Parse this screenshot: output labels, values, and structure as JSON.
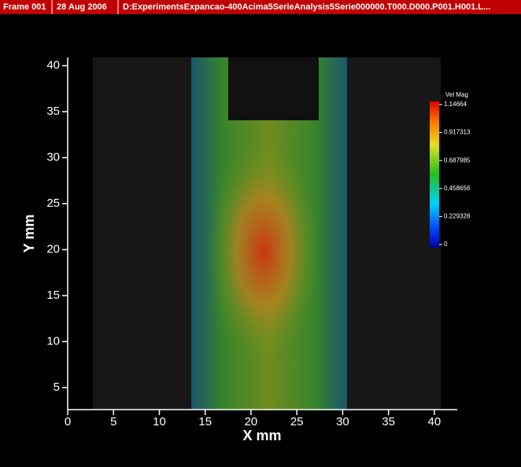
{
  "header": {
    "frame": "Frame 001",
    "date": "28 Aug 2006",
    "file": "D:ExperimentsExpancao-400Acima5SerieAnalysis5Serie000000.T000.D000.P001.H001.L..."
  },
  "chart_data": {
    "type": "quiver",
    "xlabel": "X mm",
    "ylabel": "Y mm",
    "xlim": [
      0,
      42.5
    ],
    "ylim": [
      2.6,
      40.9
    ],
    "xticks": [
      0,
      5,
      10,
      15,
      20,
      25,
      30,
      35,
      40
    ],
    "yticks": [
      5,
      10,
      15,
      20,
      25,
      30,
      35,
      40
    ],
    "colorbar": {
      "title": "Vel Mag",
      "clim": [
        0,
        1.14664
      ],
      "ticks": [
        1.14664,
        0.917313,
        0.687985,
        0.458656,
        0.229328,
        0
      ]
    }
  }
}
